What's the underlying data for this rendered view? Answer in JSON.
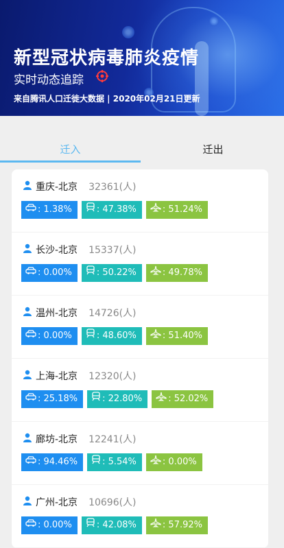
{
  "banner": {
    "title": "新型冠状病毒肺炎疫情",
    "subtitle": "实时动态追踪",
    "source": "来自腾讯人口迁徙大数据 | 2020年02月21日更新"
  },
  "tabs": [
    {
      "label": "迁入",
      "active": true
    },
    {
      "label": "迁出",
      "active": false
    }
  ],
  "colors": {
    "accent": "#5bb8f0",
    "car": "#1e8ef0",
    "train": "#1fbcb8",
    "plane": "#8bc441"
  },
  "routes": [
    {
      "route": "重庆-北京",
      "count": "32361(人)",
      "car": ": 1.38%",
      "train": ": 47.38%",
      "plane": ": 51.24%"
    },
    {
      "route": "长沙-北京",
      "count": "15337(人)",
      "car": ": 0.00%",
      "train": ": 50.22%",
      "plane": ": 49.78%"
    },
    {
      "route": "温州-北京",
      "count": "14726(人)",
      "car": ": 0.00%",
      "train": ": 48.60%",
      "plane": ": 51.40%"
    },
    {
      "route": "上海-北京",
      "count": "12320(人)",
      "car": ": 25.18%",
      "train": ": 22.80%",
      "plane": ": 52.02%"
    },
    {
      "route": "廊坊-北京",
      "count": "12241(人)",
      "car": ": 94.46%",
      "train": ": 5.54%",
      "plane": ": 0.00%"
    },
    {
      "route": "广州-北京",
      "count": "10696(人)",
      "car": ": 0.00%",
      "train": ": 42.08%",
      "plane": ": 57.92%"
    }
  ]
}
